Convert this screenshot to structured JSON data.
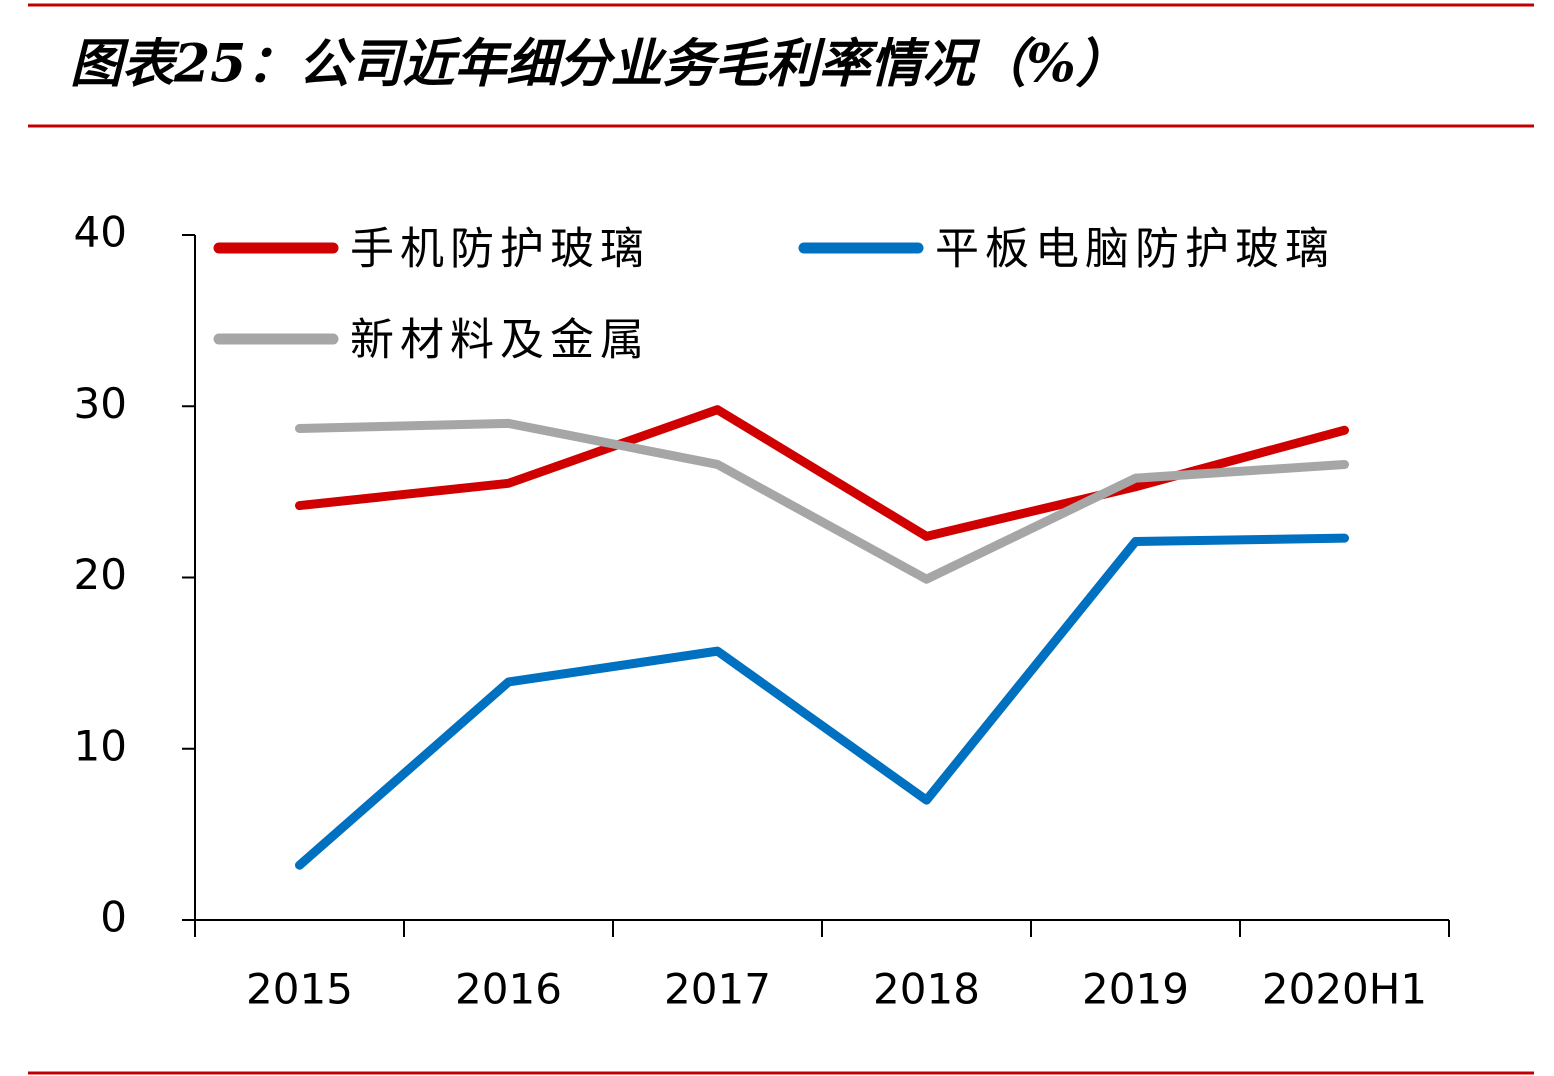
{
  "chart_data": {
    "type": "line",
    "title": "图表25：公司近年细分业务毛利率情况（%）",
    "categories": [
      "2015",
      "2016",
      "2017",
      "2018",
      "2019",
      "2020H1"
    ],
    "series": [
      {
        "name": "手机防护玻璃",
        "color": "#d00000",
        "values": [
          24.2,
          25.5,
          29.8,
          22.4,
          25.3,
          28.6
        ]
      },
      {
        "name": "平板电脑防护玻璃",
        "color": "#0070c0",
        "values": [
          3.2,
          13.9,
          15.7,
          7.0,
          22.1,
          22.3
        ]
      },
      {
        "name": "新材料及金属",
        "color": "#a6a6a6",
        "values": [
          28.7,
          29.0,
          26.6,
          19.9,
          25.8,
          26.6
        ]
      }
    ],
    "ylim": [
      0,
      40
    ],
    "yticks": [
      0,
      10,
      20,
      30,
      40
    ],
    "legend": "top-left",
    "grid": false
  }
}
